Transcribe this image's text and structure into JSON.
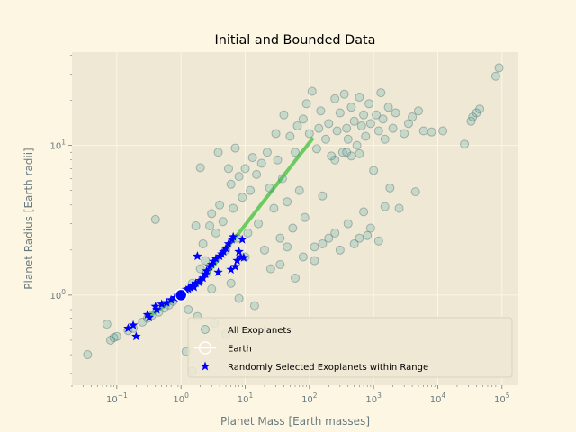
{
  "colors": {
    "figure_bg": "#fdf6e3",
    "axes_bg": "#eee8d5",
    "grid": "#fdf6e3",
    "all_fill": "#2aa198",
    "all_edge": "#586e75",
    "trend": "#00b300",
    "selected": "#0000ff",
    "earth_edge": "#ffffff",
    "earth_fill": "#0000ff"
  },
  "chart_data": {
    "type": "scatter",
    "title": "Initial and Bounded Data",
    "xlabel": "Planet Mass [Earth masses]",
    "ylabel": "Planet Radius [Earth radii]",
    "xscale": "log",
    "yscale": "log",
    "xlim": [
      0.02,
      180000
    ],
    "ylim": [
      0.25,
      42
    ],
    "grid": true,
    "legend_loc": "lower right",
    "x_ticks": [
      {
        "value": 0.1,
        "base": "10",
        "exp": "−1"
      },
      {
        "value": 1,
        "base": "10",
        "exp": "0"
      },
      {
        "value": 10,
        "base": "10",
        "exp": "1"
      },
      {
        "value": 100,
        "base": "10",
        "exp": "2"
      },
      {
        "value": 1000,
        "base": "10",
        "exp": "3"
      },
      {
        "value": 10000,
        "base": "10",
        "exp": "4"
      },
      {
        "value": 100000,
        "base": "10",
        "exp": "5"
      }
    ],
    "y_ticks": [
      {
        "value": 1,
        "base": "10",
        "exp": "0"
      },
      {
        "value": 10,
        "base": "10",
        "exp": "1"
      }
    ],
    "series": [
      {
        "name": "All Exoplanets",
        "marker": "circle",
        "points": [
          [
            0.035,
            0.4
          ],
          [
            0.07,
            0.64
          ],
          [
            0.08,
            0.5
          ],
          [
            0.09,
            0.52
          ],
          [
            0.1,
            0.53
          ],
          [
            0.15,
            0.58
          ],
          [
            0.18,
            0.6
          ],
          [
            0.25,
            0.66
          ],
          [
            0.3,
            0.7
          ],
          [
            0.35,
            0.73
          ],
          [
            0.4,
            3.2
          ],
          [
            0.45,
            0.77
          ],
          [
            0.55,
            0.82
          ],
          [
            0.65,
            0.86
          ],
          [
            0.75,
            0.91
          ],
          [
            0.9,
            0.97
          ],
          [
            1.1,
            1.05
          ],
          [
            1.2,
            0.42
          ],
          [
            1.3,
            0.8
          ],
          [
            1.5,
            1.2
          ],
          [
            1.5,
            0.31
          ],
          [
            1.7,
            2.9
          ],
          [
            1.8,
            0.72
          ],
          [
            2.0,
            7.1
          ],
          [
            2.0,
            1.5
          ],
          [
            2.2,
            2.2
          ],
          [
            2.4,
            1.7
          ],
          [
            2.5,
            1.4
          ],
          [
            2.8,
            2.9
          ],
          [
            3.0,
            3.5
          ],
          [
            3.0,
            1.1
          ],
          [
            3.3,
            0.65
          ],
          [
            3.5,
            2.6
          ],
          [
            3.8,
            9.0
          ],
          [
            4.0,
            4.0
          ],
          [
            4.5,
            3.1
          ],
          [
            5.0,
            2.0
          ],
          [
            5.0,
            0.55
          ],
          [
            5.5,
            7.0
          ],
          [
            6.0,
            5.5
          ],
          [
            6.0,
            1.2
          ],
          [
            6.5,
            3.8
          ],
          [
            7.0,
            9.6
          ],
          [
            7.5,
            2.4
          ],
          [
            8.0,
            6.2
          ],
          [
            8.0,
            0.95
          ],
          [
            9.0,
            4.5
          ],
          [
            10,
            7.0
          ],
          [
            10,
            1.8
          ],
          [
            11,
            2.6
          ],
          [
            12,
            5.0
          ],
          [
            13,
            8.3
          ],
          [
            14,
            0.85
          ],
          [
            15,
            6.4
          ],
          [
            16,
            3.0
          ],
          [
            18,
            7.6
          ],
          [
            20,
            2.0
          ],
          [
            22,
            9.0
          ],
          [
            24,
            5.2
          ],
          [
            25,
            1.5
          ],
          [
            28,
            3.8
          ],
          [
            30,
            12.0
          ],
          [
            32,
            8.0
          ],
          [
            35,
            2.4
          ],
          [
            38,
            6.0
          ],
          [
            40,
            16.0
          ],
          [
            45,
            4.2
          ],
          [
            50,
            11.5
          ],
          [
            55,
            2.8
          ],
          [
            60,
            9.0
          ],
          [
            65,
            13.5
          ],
          [
            70,
            5.0
          ],
          [
            80,
            15.0
          ],
          [
            85,
            3.3
          ],
          [
            90,
            19.0
          ],
          [
            100,
            12.0
          ],
          [
            110,
            23.0
          ],
          [
            120,
            2.1
          ],
          [
            130,
            9.5
          ],
          [
            140,
            13.0
          ],
          [
            150,
            17.0
          ],
          [
            160,
            4.6
          ],
          [
            180,
            11.0
          ],
          [
            200,
            14.0
          ],
          [
            220,
            8.5
          ],
          [
            250,
            20.5
          ],
          [
            270,
            12.5
          ],
          [
            300,
            16.5
          ],
          [
            330,
            9.0
          ],
          [
            350,
            22.0
          ],
          [
            380,
            13.0
          ],
          [
            400,
            11.0
          ],
          [
            450,
            18.0
          ],
          [
            500,
            14.5
          ],
          [
            550,
            10.0
          ],
          [
            600,
            21.0
          ],
          [
            650,
            13.5
          ],
          [
            700,
            16.0
          ],
          [
            750,
            11.5
          ],
          [
            800,
            2.5
          ],
          [
            850,
            19.0
          ],
          [
            900,
            14.0
          ],
          [
            1000,
            6.8
          ],
          [
            1100,
            16.0
          ],
          [
            1200,
            12.5
          ],
          [
            1300,
            22.5
          ],
          [
            1400,
            15.0
          ],
          [
            1500,
            11.0
          ],
          [
            1700,
            18.0
          ],
          [
            1800,
            5.2
          ],
          [
            2000,
            13.0
          ],
          [
            2200,
            16.5
          ],
          [
            2500,
            3.8
          ],
          [
            3000,
            12.0
          ],
          [
            3500,
            14.0
          ],
          [
            4000,
            15.5
          ],
          [
            4500,
            4.9
          ],
          [
            5000,
            17.0
          ],
          [
            6000,
            12.5
          ],
          [
            8000,
            12.3
          ],
          [
            12000,
            12.5
          ],
          [
            26000,
            10.2
          ],
          [
            33000,
            14.5
          ],
          [
            35000,
            15.5
          ],
          [
            40000,
            16.5
          ],
          [
            45000,
            17.5
          ],
          [
            80000,
            29.0
          ],
          [
            90000,
            33.0
          ],
          [
            35,
            1.6
          ],
          [
            45,
            2.1
          ],
          [
            60,
            1.3
          ],
          [
            80,
            1.8
          ],
          [
            120,
            1.7
          ],
          [
            160,
            2.2
          ],
          [
            250,
            2.6
          ],
          [
            400,
            3.0
          ],
          [
            600,
            2.4
          ],
          [
            700,
            3.6
          ],
          [
            200,
            2.4
          ],
          [
            300,
            2.0
          ],
          [
            500,
            2.2
          ],
          [
            900,
            2.8
          ],
          [
            1200,
            2.3
          ],
          [
            1500,
            3.9
          ],
          [
            250,
            8.0
          ],
          [
            380,
            9.0
          ],
          [
            450,
            8.5
          ],
          [
            600,
            8.8
          ]
        ]
      },
      {
        "name": "Earth",
        "marker": "circle-large",
        "points": [
          [
            1,
            1
          ]
        ]
      },
      {
        "name": "Randomly Selected Exoplanets within Range",
        "marker": "star",
        "points": [
          [
            0.15,
            0.6
          ],
          [
            0.18,
            0.63
          ],
          [
            0.2,
            0.53
          ],
          [
            0.3,
            0.74
          ],
          [
            0.32,
            0.71
          ],
          [
            0.4,
            0.84
          ],
          [
            0.42,
            0.8
          ],
          [
            0.5,
            0.87
          ],
          [
            0.6,
            0.89
          ],
          [
            0.7,
            0.93
          ],
          [
            0.8,
            0.96
          ],
          [
            0.9,
            0.99
          ],
          [
            1.1,
            1.05
          ],
          [
            1.2,
            1.08
          ],
          [
            1.3,
            1.1
          ],
          [
            1.4,
            1.12
          ],
          [
            1.5,
            1.15
          ],
          [
            1.6,
            1.13
          ],
          [
            1.7,
            1.2
          ],
          [
            1.8,
            1.82
          ],
          [
            1.9,
            1.22
          ],
          [
            2.0,
            1.25
          ],
          [
            2.2,
            1.3
          ],
          [
            2.4,
            1.38
          ],
          [
            2.5,
            1.45
          ],
          [
            2.8,
            1.55
          ],
          [
            3.0,
            1.6
          ],
          [
            3.2,
            1.68
          ],
          [
            3.5,
            1.75
          ],
          [
            3.8,
            1.42
          ],
          [
            4.0,
            1.82
          ],
          [
            4.3,
            1.88
          ],
          [
            4.6,
            1.95
          ],
          [
            5.0,
            2.05
          ],
          [
            5.5,
            2.2
          ],
          [
            6.0,
            1.48
          ],
          [
            6.2,
            2.35
          ],
          [
            6.5,
            2.45
          ],
          [
            7.0,
            1.55
          ],
          [
            7.5,
            1.7
          ],
          [
            8.0,
            1.95
          ],
          [
            8.5,
            1.8
          ],
          [
            9.0,
            2.35
          ],
          [
            9.5,
            1.78
          ]
        ]
      }
    ],
    "legend": [
      {
        "label": "All Exoplanets",
        "marker": "circle"
      },
      {
        "label": "Earth",
        "marker": "circle-large"
      },
      {
        "label": "Randomly Selected Exoplanets within Range",
        "marker": "star"
      }
    ]
  }
}
